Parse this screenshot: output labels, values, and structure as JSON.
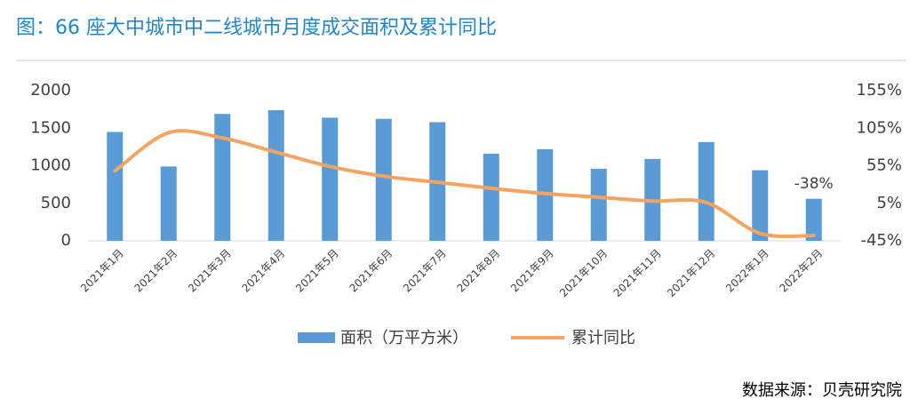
{
  "chart_data": {
    "type": "bar-line",
    "title": "图：66 座大中城市中二线城市月度成交面积及累计同比",
    "source": "数据来源：贝壳研究院",
    "categories": [
      "2021年1月",
      "2021年2月",
      "2021年3月",
      "2021年4月",
      "2021年5月",
      "2021年6月",
      "2021年7月",
      "2021年8月",
      "2021年9月",
      "2021年10月",
      "2021年11月",
      "2021年12月",
      "2022年1月",
      "2022年2月"
    ],
    "series": [
      {
        "name": "面积（万平方米）",
        "type": "bar",
        "color": "#5b9bd5",
        "values": [
          1450,
          990,
          1690,
          1740,
          1640,
          1625,
          1580,
          1160,
          1220,
          960,
          1090,
          1315,
          940,
          560
        ]
      },
      {
        "name": "累计同比",
        "type": "line",
        "axis": "y2",
        "color": "#f4a460",
        "values": [
          48,
          99,
          92,
          73,
          54,
          41,
          33,
          25,
          18,
          13,
          8,
          6,
          -35,
          -38
        ],
        "value_labels": [
          null,
          null,
          null,
          null,
          null,
          null,
          null,
          null,
          null,
          null,
          null,
          null,
          null,
          "-38%"
        ]
      }
    ],
    "ylim": [
      0,
      2000
    ],
    "yticks": [
      0,
      500,
      1000,
      1500,
      2000
    ],
    "y2lim": [
      -45,
      155
    ],
    "y2ticks": [
      {
        "value": -45,
        "label": "-45%"
      },
      {
        "value": 5,
        "label": "5%"
      },
      {
        "value": 55,
        "label": "55%"
      },
      {
        "value": 105,
        "label": "105%"
      },
      {
        "value": 155,
        "label": "155%"
      }
    ]
  }
}
